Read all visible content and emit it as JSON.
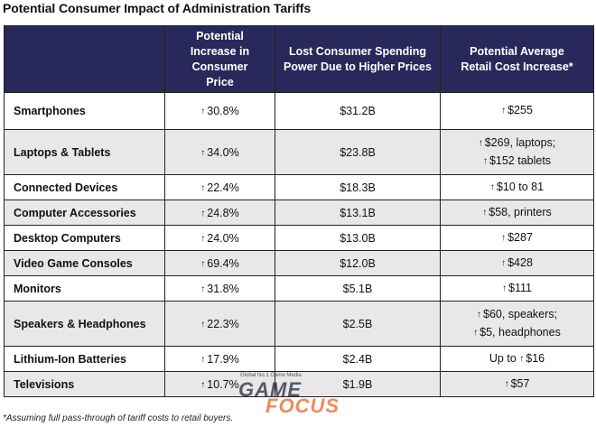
{
  "title": "Potential Consumer Impact of Administration Tariffs",
  "headers": {
    "category": "",
    "price_increase": "Potential Increase in Consumer Price",
    "lost_spending": "Lost Consumer Spending Power Due to Higher Prices",
    "retail_cost": "Potential Average Retail Cost Increase*"
  },
  "arrow_glyph": "↑",
  "rows": [
    {
      "category": "Smartphones",
      "price_increase": "30.8%",
      "lost_spending": "$31.2B",
      "retail_cost": [
        {
          "arrow": true,
          "prefix": "",
          "text": "$255"
        }
      ]
    },
    {
      "category": "Laptops & Tablets",
      "price_increase": "34.0%",
      "lost_spending": "$23.8B",
      "retail_cost": [
        {
          "arrow": true,
          "prefix": "",
          "text": "$269, laptops;"
        },
        {
          "arrow": true,
          "prefix": "",
          "text": "$152 tablets"
        }
      ]
    },
    {
      "category": "Connected Devices",
      "price_increase": "22.4%",
      "lost_spending": "$18.3B",
      "retail_cost": [
        {
          "arrow": true,
          "prefix": "",
          "text": "$10 to 81"
        }
      ]
    },
    {
      "category": "Computer Accessories",
      "price_increase": "24.8%",
      "lost_spending": "$13.1B",
      "retail_cost": [
        {
          "arrow": true,
          "prefix": "",
          "text": "$58, printers"
        }
      ]
    },
    {
      "category": "Desktop Computers",
      "price_increase": "24.0%",
      "lost_spending": "$13.0B",
      "retail_cost": [
        {
          "arrow": true,
          "prefix": "",
          "text": "$287"
        }
      ]
    },
    {
      "category": "Video Game Consoles",
      "price_increase": "69.4%",
      "lost_spending": "$12.0B",
      "retail_cost": [
        {
          "arrow": true,
          "prefix": "",
          "text": "$428"
        }
      ]
    },
    {
      "category": "Monitors",
      "price_increase": "31.8%",
      "lost_spending": "$5.1B",
      "retail_cost": [
        {
          "arrow": true,
          "prefix": "",
          "text": "$111"
        }
      ]
    },
    {
      "category": "Speakers & Headphones",
      "price_increase": "22.3%",
      "lost_spending": "$2.5B",
      "retail_cost": [
        {
          "arrow": true,
          "prefix": "",
          "text": "$60, speakers;"
        },
        {
          "arrow": true,
          "prefix": "",
          "text": "$5, headphones"
        }
      ]
    },
    {
      "category": "Lithium-Ion Batteries",
      "price_increase": "17.9%",
      "lost_spending": "$2.4B",
      "retail_cost": [
        {
          "arrow": true,
          "prefix": "Up to ",
          "text": "$16"
        }
      ]
    },
    {
      "category": "Televisions",
      "price_increase": "10.7%",
      "lost_spending": "$1.9B",
      "retail_cost": [
        {
          "arrow": true,
          "prefix": "",
          "text": "$57"
        }
      ]
    }
  ],
  "footnote": "*Assuming full pass-through of tariff costs to retail buyers.",
  "watermark": {
    "tagline": "Global No.1 Game Media",
    "line1": "GAME",
    "line2": "FOCUS"
  }
}
